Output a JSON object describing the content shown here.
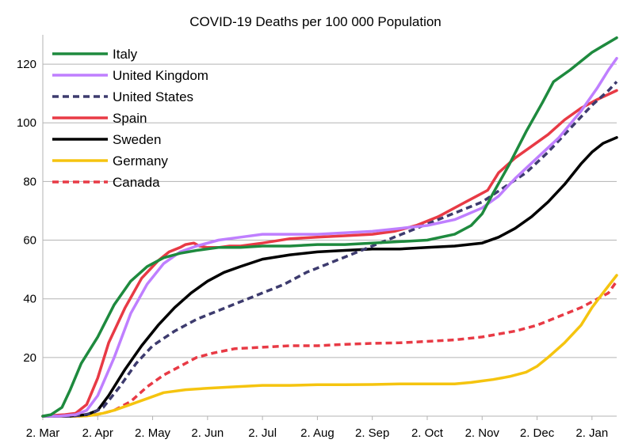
{
  "chart_data": {
    "type": "line",
    "title": "COVID-19 Deaths per 100 000 Population",
    "xlabel": "",
    "ylabel": "",
    "ylim": [
      0,
      130
    ],
    "yticks": [
      20,
      40,
      60,
      80,
      100,
      120
    ],
    "grid": true,
    "legend": "top-left",
    "x_start": 0,
    "x_end": 10.45,
    "categories": [
      "2. Mar",
      "2. Apr",
      "2. May",
      "2. Jun",
      "2. Jul",
      "2. Aug",
      "2. Sep",
      "2. Oct",
      "2. Nov",
      "2. Dec",
      "2. Jan"
    ],
    "series": [
      {
        "name": "Italy",
        "color": "#1e8a3e",
        "dash": false,
        "x": [
          0,
          0.15,
          0.35,
          0.5,
          0.7,
          1.0,
          1.3,
          1.6,
          1.9,
          2.2,
          2.5,
          2.8,
          3.2,
          3.6,
          4.0,
          4.5,
          5.0,
          5.5,
          6.0,
          6.5,
          7.0,
          7.5,
          7.8,
          8.0,
          8.2,
          8.5,
          8.8,
          9.1,
          9.3,
          9.6,
          10.0,
          10.45
        ],
        "y": [
          0,
          0.5,
          3,
          9,
          18,
          27,
          38,
          46,
          51,
          54,
          55.5,
          56.5,
          57.5,
          57.5,
          58,
          58,
          58.5,
          58.5,
          59,
          59.5,
          60,
          62,
          65,
          69,
          76,
          86,
          97,
          107,
          114,
          118,
          124,
          129
        ]
      },
      {
        "name": "United Kingdom",
        "color": "#bf7fff",
        "dash": false,
        "x": [
          0,
          0.3,
          0.6,
          0.8,
          1.0,
          1.3,
          1.6,
          1.9,
          2.2,
          2.5,
          2.8,
          3.2,
          3.6,
          4.0,
          4.5,
          5.0,
          5.5,
          6.0,
          6.5,
          7.0,
          7.5,
          8.0,
          8.3,
          8.6,
          9.0,
          9.4,
          9.8,
          10.1,
          10.3,
          10.45
        ],
        "y": [
          0,
          0,
          0.5,
          2,
          7,
          20,
          35,
          45,
          52,
          56,
          58,
          60,
          61,
          62,
          62,
          62,
          62.5,
          63,
          64,
          65,
          67,
          71,
          75,
          81,
          88,
          95,
          104,
          112,
          118,
          122
        ]
      },
      {
        "name": "United States",
        "color": "#3d3b6e",
        "dash": true,
        "x": [
          0,
          0.5,
          0.7,
          0.9,
          1.1,
          1.4,
          1.7,
          2.0,
          2.4,
          2.8,
          3.2,
          3.6,
          4.0,
          4.4,
          4.8,
          5.2,
          5.6,
          6.0,
          6.4,
          6.8,
          7.2,
          7.6,
          8.0,
          8.4,
          8.8,
          9.2,
          9.6,
          10.0,
          10.3,
          10.45
        ],
        "y": [
          0,
          0,
          0.3,
          1,
          3,
          10,
          18,
          24,
          29,
          33,
          36,
          39,
          42,
          45,
          49,
          52,
          55,
          58,
          61,
          64,
          67,
          70,
          73,
          78,
          83,
          90,
          98,
          106,
          111,
          114
        ]
      },
      {
        "name": "Spain",
        "color": "#e83a45",
        "dash": false,
        "x": [
          0,
          0.4,
          0.6,
          0.8,
          1.0,
          1.2,
          1.5,
          1.8,
          2.1,
          2.3,
          2.5,
          2.6,
          2.75,
          2.85,
          3.0,
          3.2,
          3.4,
          3.6,
          4.0,
          4.5,
          5.0,
          5.5,
          6.0,
          6.4,
          6.8,
          7.2,
          7.6,
          7.9,
          8.1,
          8.3,
          8.6,
          8.9,
          9.2,
          9.5,
          9.8,
          10.1,
          10.45
        ],
        "y": [
          0,
          0.5,
          1,
          4,
          13,
          25,
          37,
          47,
          53,
          56,
          57.5,
          58.5,
          59,
          58,
          57.5,
          57.5,
          58,
          58,
          59,
          60.5,
          61,
          61.5,
          62,
          63,
          65,
          68,
          72,
          75,
          77,
          83,
          88,
          92,
          96,
          101,
          105,
          108,
          111
        ]
      },
      {
        "name": "Sweden",
        "color": "#000000",
        "dash": false,
        "x": [
          0,
          0.5,
          0.8,
          1.0,
          1.2,
          1.5,
          1.8,
          2.1,
          2.4,
          2.7,
          3.0,
          3.3,
          3.6,
          4.0,
          4.5,
          5.0,
          5.5,
          6.0,
          6.5,
          7.0,
          7.5,
          8.0,
          8.3,
          8.6,
          8.9,
          9.2,
          9.5,
          9.8,
          10.0,
          10.2,
          10.45
        ],
        "y": [
          0,
          0,
          0.5,
          2,
          7,
          16,
          24,
          31,
          37,
          42,
          46,
          49,
          51,
          53.5,
          55,
          56,
          56.5,
          57,
          57,
          57.5,
          58,
          59,
          61,
          64,
          68,
          73,
          79,
          86,
          90,
          93,
          95
        ]
      },
      {
        "name": "Germany",
        "color": "#f5c40f",
        "dash": false,
        "x": [
          0,
          0.7,
          0.9,
          1.1,
          1.3,
          1.6,
          1.9,
          2.2,
          2.6,
          3.0,
          3.5,
          4.0,
          4.5,
          5.0,
          5.5,
          6.0,
          6.5,
          7.0,
          7.5,
          7.8,
          8.0,
          8.2,
          8.5,
          8.8,
          9.0,
          9.2,
          9.5,
          9.8,
          10.0,
          10.2,
          10.45
        ],
        "y": [
          0,
          0,
          0.3,
          1,
          2,
          4,
          6,
          8,
          9,
          9.5,
          10,
          10.5,
          10.5,
          10.7,
          10.7,
          10.8,
          11,
          11,
          11,
          11.5,
          12,
          12.5,
          13.5,
          15,
          17,
          20,
          25,
          31,
          37,
          42,
          48
        ]
      },
      {
        "name": "Canada",
        "color": "#e83a45",
        "dash": true,
        "x": [
          0,
          0.7,
          0.9,
          1.1,
          1.3,
          1.6,
          1.9,
          2.2,
          2.5,
          2.8,
          3.1,
          3.5,
          4.0,
          4.5,
          5.0,
          5.5,
          6.0,
          6.5,
          7.0,
          7.5,
          8.0,
          8.3,
          8.6,
          9.0,
          9.4,
          9.8,
          10.1,
          10.3,
          10.45
        ],
        "y": [
          0,
          0,
          0.3,
          1,
          2,
          5,
          10,
          14,
          17,
          20,
          21.5,
          23,
          23.5,
          24,
          24,
          24.5,
          24.8,
          25,
          25.5,
          26,
          27,
          28,
          29,
          31,
          34,
          37,
          40,
          42,
          46
        ]
      }
    ]
  }
}
